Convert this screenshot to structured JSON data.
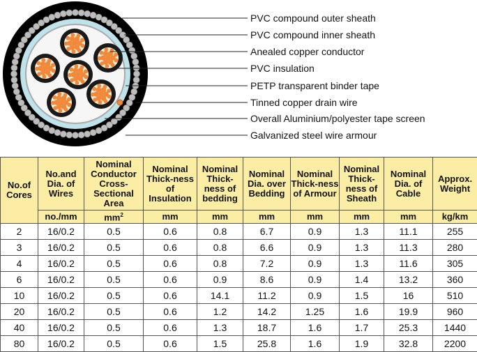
{
  "diagram": {
    "labels": [
      "PVC compound outer sheath",
      "PVC compound inner sheath",
      "Anealed copper conductor",
      "PVC insulation",
      "PETP transparent binder tape",
      "Tinned copper drain wire",
      "Overall Aluminium/polyester tape screen",
      "Galvanized steel wire armour"
    ],
    "colors": {
      "copper": "#f0893a",
      "sheath": "#000000",
      "armour": "#b8b8b8",
      "tape": "#bfe3ea",
      "header": "#fbeea4"
    }
  },
  "table": {
    "headers": [
      "No.of Cores",
      "No.and Dia. of Wires",
      "Nominal Conductor Cross-Sectional Area",
      "Nominal Thick-ness of Insulation",
      "Nominal Thick-ness of bedding",
      "Nominal Dia. over Bedding",
      "Nominal Thick-ness of Armour",
      "Nominal Thick-ness of Sheath",
      "Nominal Dia. of Cable",
      "Approx. Weight"
    ],
    "units": [
      "no./mm",
      "mm",
      "mm",
      "mm",
      "mm",
      "mm",
      "mm",
      "mm",
      "kg/km"
    ],
    "area_unit_sup": "2",
    "rows": [
      [
        "2",
        "16/0.2",
        "0.5",
        "0.6",
        "0.8",
        "6.7",
        "0.9",
        "1.3",
        "11.1",
        "255"
      ],
      [
        "3",
        "16/0.2",
        "0.5",
        "0.6",
        "0.8",
        "6.6",
        "0.9",
        "1.3",
        "11.3",
        "280"
      ],
      [
        "4",
        "16/0.2",
        "0.5",
        "0.6",
        "0.8",
        "7.2",
        "0.9",
        "1.3",
        "11.6",
        "305"
      ],
      [
        "6",
        "16/0.2",
        "0.5",
        "0.6",
        "0.9",
        "8.6",
        "0.9",
        "1.4",
        "13.2",
        "360"
      ],
      [
        "10",
        "16/0.2",
        "0.5",
        "0.6",
        "14.1",
        "11.2",
        "0.9",
        "1.5",
        "16",
        "510"
      ],
      [
        "20",
        "16/0.2",
        "0.5",
        "0.6",
        "1.2",
        "14.2",
        "1.25",
        "1.6",
        "19.9",
        "960"
      ],
      [
        "40",
        "16/0.2",
        "0.5",
        "0.6",
        "1.3",
        "18.7",
        "1.6",
        "1.7",
        "25.3",
        "1440"
      ],
      [
        "80",
        "16/0.2",
        "0.5",
        "0.6",
        "1.5",
        "25.8",
        "1.6",
        "1.9",
        "32.8",
        "2200"
      ]
    ]
  }
}
